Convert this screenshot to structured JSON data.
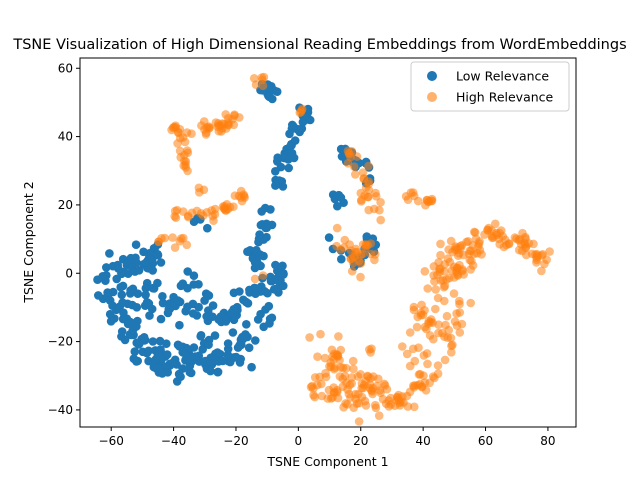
{
  "chart_data": {
    "type": "scatter",
    "title": "TSNE Visualization of High Dimensional Reading Embeddings from WordEmbeddings",
    "xlabel": "TSNE Component 1",
    "ylabel": "TSNE Component 2",
    "xlim": [
      -70,
      89
    ],
    "ylim": [
      -45,
      63
    ],
    "x_ticks": [
      -60,
      -40,
      -20,
      0,
      20,
      40,
      60,
      80
    ],
    "y_ticks": [
      -40,
      -20,
      0,
      20,
      40,
      60
    ],
    "grid": false,
    "legend_position": "top-right",
    "series": [
      {
        "name": "Low Relevance",
        "color": "#1f77b4",
        "alpha": 1.0,
        "clusters": [
          {
            "path": [
              [
                -62,
                -7
              ],
              [
                -58,
                -10
              ],
              [
                -54,
                -16
              ],
              [
                -50,
                -22
              ],
              [
                -46,
                -24
              ],
              [
                -42,
                -26
              ],
              [
                -38,
                -27
              ],
              [
                -34,
                -24
              ],
              [
                -30,
                -22
              ],
              [
                -26,
                -27
              ]
            ],
            "n": 120,
            "spread": 2.6
          },
          {
            "path": [
              [
                -62,
                3
              ],
              [
                -58,
                2
              ],
              [
                -54,
                4
              ],
              [
                -50,
                5
              ],
              [
                -46,
                3
              ],
              [
                -44,
                6
              ]
            ],
            "n": 35,
            "spread": 2.0
          },
          {
            "path": [
              [
                -60,
                -8
              ],
              [
                -56,
                -4
              ],
              [
                -52,
                -2
              ],
              [
                -48,
                -6
              ],
              [
                -44,
                -10
              ],
              [
                -40,
                -13
              ],
              [
                -36,
                -8
              ],
              [
                -32,
                -2
              ]
            ],
            "n": 60,
            "spread": 3.0
          },
          {
            "path": [
              [
                -28,
                -20
              ],
              [
                -24,
                -26
              ],
              [
                -20,
                -23
              ],
              [
                -16,
                -18
              ],
              [
                -12,
                -12
              ],
              [
                -9,
                -5
              ],
              [
                -6,
                0
              ]
            ],
            "n": 55,
            "spread": 2.0
          },
          {
            "path": [
              [
                -32,
                -12
              ],
              [
                -28,
                -8
              ],
              [
                -24,
                -14
              ],
              [
                -20,
                -10
              ],
              [
                -16,
                -5
              ],
              [
                -12,
                -2
              ]
            ],
            "n": 35,
            "spread": 2.0
          },
          {
            "path": [
              [
                -16,
                6
              ],
              [
                -13,
                4
              ],
              [
                -11,
                12
              ],
              [
                -7,
                24
              ],
              [
                -5,
                32
              ],
              [
                -2,
                38
              ],
              [
                0,
                44
              ],
              [
                3,
                48
              ]
            ],
            "n": 70,
            "spread": 1.2
          },
          {
            "path": [
              [
                -16,
                55
              ],
              [
                -12,
                55
              ],
              [
                -9,
                53
              ],
              [
                -6,
                54
              ]
            ],
            "n": 12,
            "spread": 1.0
          },
          {
            "path": [
              [
                -4,
                -5
              ],
              [
                -6,
                -2
              ],
              [
                -7,
                2
              ]
            ],
            "n": 8,
            "spread": 1.0
          },
          {
            "path": [
              [
                11,
                23
              ],
              [
                13,
                21
              ],
              [
                15,
                22
              ]
            ],
            "n": 6,
            "spread": 1.0
          },
          {
            "path": [
              [
                15,
                36
              ],
              [
                16,
                33
              ],
              [
                18,
                31
              ],
              [
                20,
                33
              ],
              [
                22,
                30
              ],
              [
                23,
                27
              ]
            ],
            "n": 22,
            "spread": 1.2
          },
          {
            "path": [
              [
                12,
                9
              ],
              [
                14,
                6
              ],
              [
                16,
                4
              ],
              [
                18,
                2
              ],
              [
                20,
                4
              ],
              [
                22,
                7
              ],
              [
                23,
                10
              ]
            ],
            "n": 24,
            "spread": 1.3
          },
          {
            "path": [
              [
                -30,
                14
              ],
              [
                -32,
                16
              ]
            ],
            "n": 4,
            "spread": 0.8
          }
        ]
      },
      {
        "name": "High Relevance",
        "color": "#ff7f0e",
        "alpha": 0.55,
        "clusters": [
          {
            "path": [
              [
                -40,
                43
              ],
              [
                -38,
                41
              ],
              [
                -36,
                42
              ],
              [
                -30,
                42
              ],
              [
                -26,
                43
              ],
              [
                -24,
                44
              ],
              [
                -21,
                46
              ]
            ],
            "n": 40,
            "spread": 1.2
          },
          {
            "path": [
              [
                -36,
                30
              ],
              [
                -37,
                34
              ],
              [
                -37,
                38
              ],
              [
                -38,
                41
              ]
            ],
            "n": 15,
            "spread": 0.9
          },
          {
            "path": [
              [
                -40,
                17
              ],
              [
                -34,
                18
              ],
              [
                -28,
                18
              ],
              [
                -24,
                19
              ],
              [
                -20,
                21
              ],
              [
                -17,
                23
              ]
            ],
            "n": 35,
            "spread": 1.0
          },
          {
            "path": [
              [
                -46,
                9
              ],
              [
                -44,
                10
              ],
              [
                -40,
                9
              ],
              [
                -37,
                10
              ]
            ],
            "n": 10,
            "spread": 0.8
          },
          {
            "path": [
              [
                -32,
                25
              ],
              [
                -31,
                25
              ]
            ],
            "n": 3,
            "spread": 0.6
          },
          {
            "path": [
              [
                -15,
                56
              ],
              [
                -11,
                57
              ],
              [
                -12,
                55
              ]
            ],
            "n": 6,
            "spread": 1.0
          },
          {
            "path": [
              [
                1,
                47
              ],
              [
                2,
                49
              ]
            ],
            "n": 4,
            "spread": 0.6
          },
          {
            "path": [
              [
                14,
                33
              ],
              [
                17,
                35
              ],
              [
                20,
                30
              ],
              [
                22,
                27
              ],
              [
                24,
                24
              ],
              [
                23,
                20
              ],
              [
                25,
                20
              ]
            ],
            "n": 30,
            "spread": 1.5
          },
          {
            "path": [
              [
                12,
                10
              ],
              [
                15,
                8
              ],
              [
                17,
                4
              ],
              [
                19,
                1
              ],
              [
                21,
                4
              ],
              [
                23,
                9
              ]
            ],
            "n": 30,
            "spread": 1.6
          },
          {
            "path": [
              [
                34,
                21
              ],
              [
                37,
                23
              ],
              [
                40,
                22
              ],
              [
                42,
                20
              ]
            ],
            "n": 14,
            "spread": 1.0
          },
          {
            "path": [
              [
                8,
                -19
              ],
              [
                11,
                -22
              ],
              [
                13,
                -26
              ],
              [
                15,
                -30
              ],
              [
                17,
                -33
              ],
              [
                19,
                -37
              ],
              [
                22,
                -39
              ]
            ],
            "n": 45,
            "spread": 2.4
          },
          {
            "path": [
              [
                2,
                -30
              ],
              [
                6,
                -33
              ],
              [
                10,
                -36
              ],
              [
                14,
                -37
              ],
              [
                18,
                -36
              ]
            ],
            "n": 30,
            "spread": 2.0
          },
          {
            "path": [
              [
                20,
                -31
              ],
              [
                24,
                -33
              ],
              [
                28,
                -37
              ],
              [
                32,
                -37
              ],
              [
                36,
                -36
              ],
              [
                40,
                -33
              ],
              [
                44,
                -29
              ]
            ],
            "n": 60,
            "spread": 2.0
          },
          {
            "path": [
              [
                36,
                -26
              ],
              [
                38,
                -20
              ],
              [
                40,
                -14
              ],
              [
                42,
                -8
              ],
              [
                44,
                -2
              ],
              [
                46,
                2
              ],
              [
                48,
                6
              ],
              [
                52,
                8
              ]
            ],
            "n": 60,
            "spread": 2.4
          },
          {
            "path": [
              [
                44,
                -27
              ],
              [
                46,
                -22
              ],
              [
                48,
                -16
              ],
              [
                50,
                -12
              ],
              [
                53,
                -8
              ]
            ],
            "n": 25,
            "spread": 2.0
          },
          {
            "path": [
              [
                52,
                5
              ],
              [
                56,
                8
              ],
              [
                60,
                10
              ],
              [
                64,
                11
              ],
              [
                68,
                10
              ],
              [
                72,
                8
              ],
              [
                76,
                6
              ],
              [
                80,
                4
              ]
            ],
            "n": 70,
            "spread": 1.6
          },
          {
            "path": [
              [
                46,
                0
              ],
              [
                50,
                -2
              ],
              [
                54,
                2
              ],
              [
                58,
                6
              ]
            ],
            "n": 20,
            "spread": 1.6
          },
          {
            "path": [
              [
                22,
                -22
              ],
              [
                23,
                -23
              ]
            ],
            "n": 3,
            "spread": 0.6
          },
          {
            "path": [
              [
                -14,
                0
              ],
              [
                -10,
                -2
              ]
            ],
            "n": 2,
            "spread": 0.5
          }
        ]
      }
    ]
  }
}
